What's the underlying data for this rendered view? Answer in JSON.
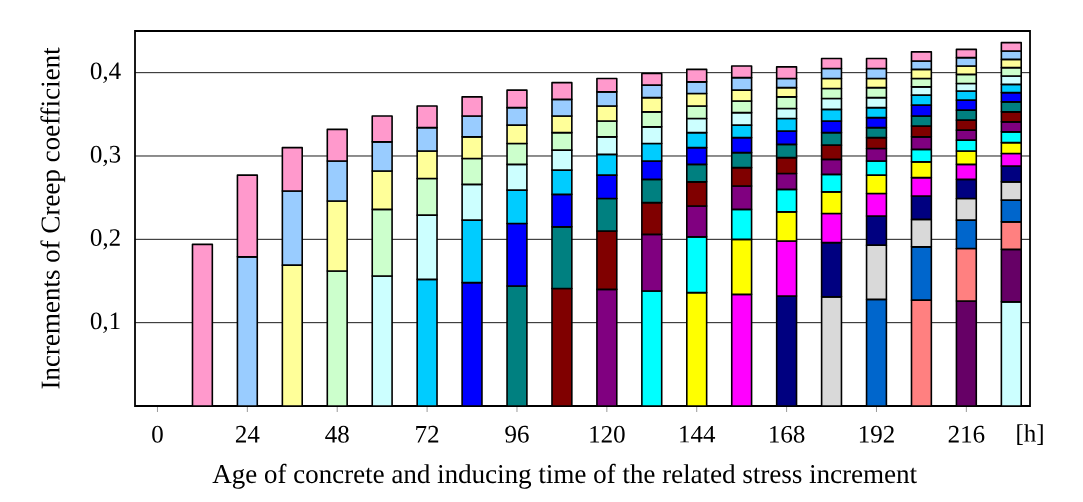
{
  "chart_data": {
    "type": "bar",
    "stacked": true,
    "ylabel": "Increments of Creep coefficient",
    "xlabel": "Age of concrete and inducing time of the related stress increment",
    "annotations": [
      "[h]"
    ],
    "x": [
      12,
      24,
      36,
      48,
      60,
      72,
      84,
      96,
      108,
      120,
      132,
      144,
      156,
      168,
      180,
      192,
      204,
      216,
      228
    ],
    "xlim": [
      -6,
      233
    ],
    "xticks": [
      0,
      24,
      48,
      72,
      96,
      120,
      144,
      168,
      192,
      216
    ],
    "ylim": [
      0,
      0.45
    ],
    "yticks": [
      {
        "value": 0.1,
        "label": "0,1"
      },
      {
        "value": 0.2,
        "label": "0,2"
      },
      {
        "value": 0.3,
        "label": "0,3"
      },
      {
        "value": 0.4,
        "label": "0,4"
      }
    ],
    "grid": "y",
    "series": [
      {
        "color": "#ccffff",
        "values": [
          null,
          null,
          null,
          null,
          null,
          null,
          null,
          null,
          null,
          null,
          null,
          null,
          null,
          null,
          null,
          null,
          null,
          null,
          0.125
        ]
      },
      {
        "color": "#660066",
        "values": [
          null,
          null,
          null,
          null,
          null,
          null,
          null,
          null,
          null,
          null,
          null,
          null,
          null,
          null,
          null,
          null,
          null,
          0.126,
          0.063
        ]
      },
      {
        "color": "#ff8080",
        "values": [
          null,
          null,
          null,
          null,
          null,
          null,
          null,
          null,
          null,
          null,
          null,
          null,
          null,
          null,
          null,
          null,
          0.127,
          0.063,
          0.033
        ]
      },
      {
        "color": "#0066cc",
        "values": [
          null,
          null,
          null,
          null,
          null,
          null,
          null,
          null,
          null,
          null,
          null,
          null,
          null,
          null,
          null,
          0.128,
          0.064,
          0.034,
          0.026
        ]
      },
      {
        "color": "#d9d9d9",
        "values": [
          null,
          null,
          null,
          null,
          null,
          null,
          null,
          null,
          null,
          null,
          null,
          null,
          null,
          null,
          0.131,
          0.065,
          0.033,
          0.026,
          0.022
        ]
      },
      {
        "color": "#000080",
        "values": [
          null,
          null,
          null,
          null,
          null,
          null,
          null,
          null,
          null,
          null,
          null,
          null,
          null,
          0.132,
          0.065,
          0.035,
          0.028,
          0.023,
          0.019
        ]
      },
      {
        "color": "#ff00ff",
        "values": [
          null,
          null,
          null,
          null,
          null,
          null,
          null,
          null,
          null,
          null,
          null,
          null,
          0.134,
          0.066,
          0.035,
          0.027,
          0.022,
          0.018,
          0.015
        ]
      },
      {
        "color": "#ffff00",
        "values": [
          null,
          null,
          null,
          null,
          null,
          null,
          null,
          null,
          null,
          null,
          null,
          0.136,
          0.066,
          0.035,
          0.026,
          0.022,
          0.019,
          0.016,
          0.013
        ]
      },
      {
        "color": "#00ffff",
        "values": [
          null,
          null,
          null,
          null,
          null,
          null,
          null,
          null,
          null,
          null,
          0.138,
          0.067,
          0.036,
          0.027,
          0.021,
          0.017,
          0.015,
          0.013,
          0.013
        ]
      },
      {
        "color": "#800080",
        "values": [
          null,
          null,
          null,
          null,
          null,
          null,
          null,
          null,
          null,
          0.14,
          0.068,
          0.037,
          0.028,
          0.019,
          0.018,
          0.015,
          0.015,
          0.012,
          0.012
        ]
      },
      {
        "color": "#800000",
        "values": [
          null,
          null,
          null,
          null,
          null,
          null,
          null,
          null,
          0.141,
          0.07,
          0.038,
          0.029,
          0.022,
          0.019,
          0.017,
          0.013,
          0.013,
          0.012,
          0.012
        ]
      },
      {
        "color": "#008080",
        "values": [
          null,
          null,
          null,
          null,
          null,
          null,
          null,
          0.144,
          0.074,
          0.039,
          0.028,
          0.021,
          0.018,
          0.016,
          0.015,
          0.012,
          0.012,
          0.012,
          0.012
        ]
      },
      {
        "color": "#0000ff",
        "values": [
          null,
          null,
          null,
          null,
          null,
          null,
          0.148,
          0.075,
          0.039,
          0.028,
          0.022,
          0.02,
          0.018,
          0.016,
          0.014,
          0.012,
          0.013,
          0.012,
          0.011
        ]
      },
      {
        "color": "#00ccff",
        "values": [
          null,
          null,
          null,
          null,
          null,
          0.152,
          0.075,
          0.04,
          0.029,
          0.025,
          0.021,
          0.018,
          0.015,
          0.015,
          0.014,
          0.012,
          0.012,
          0.011,
          0.01
        ]
      },
      {
        "color": "#ccffff",
        "values": [
          null,
          null,
          null,
          null,
          0.156,
          0.077,
          0.043,
          0.031,
          0.024,
          0.021,
          0.02,
          0.017,
          0.015,
          0.012,
          0.013,
          0.012,
          0.01,
          0.009,
          0.01
        ]
      },
      {
        "color": "#ccffcc",
        "values": [
          null,
          null,
          null,
          0.162,
          0.08,
          0.044,
          0.031,
          0.025,
          0.021,
          0.019,
          0.018,
          0.015,
          0.014,
          0.014,
          0.012,
          0.012,
          0.01,
          0.011,
          0.01
        ]
      },
      {
        "color": "#ffff99",
        "values": [
          null,
          null,
          0.169,
          0.084,
          0.046,
          0.033,
          0.026,
          0.022,
          0.02,
          0.018,
          0.017,
          0.015,
          0.013,
          0.011,
          0.012,
          0.011,
          0.011,
          0.01,
          0.01
        ]
      },
      {
        "color": "#99ccff",
        "values": [
          null,
          0.179,
          0.089,
          0.048,
          0.035,
          0.028,
          0.025,
          0.021,
          0.02,
          0.017,
          0.015,
          0.014,
          0.015,
          0.011,
          0.012,
          0.012,
          0.01,
          0.01,
          0.01
        ]
      },
      {
        "color": "#ff99cc",
        "values": [
          0.194,
          0.098,
          0.052,
          0.038,
          0.031,
          0.026,
          0.023,
          0.021,
          0.02,
          0.016,
          0.014,
          0.015,
          0.014,
          0.014,
          0.012,
          0.012,
          0.011,
          0.01,
          0.01
        ]
      }
    ]
  }
}
